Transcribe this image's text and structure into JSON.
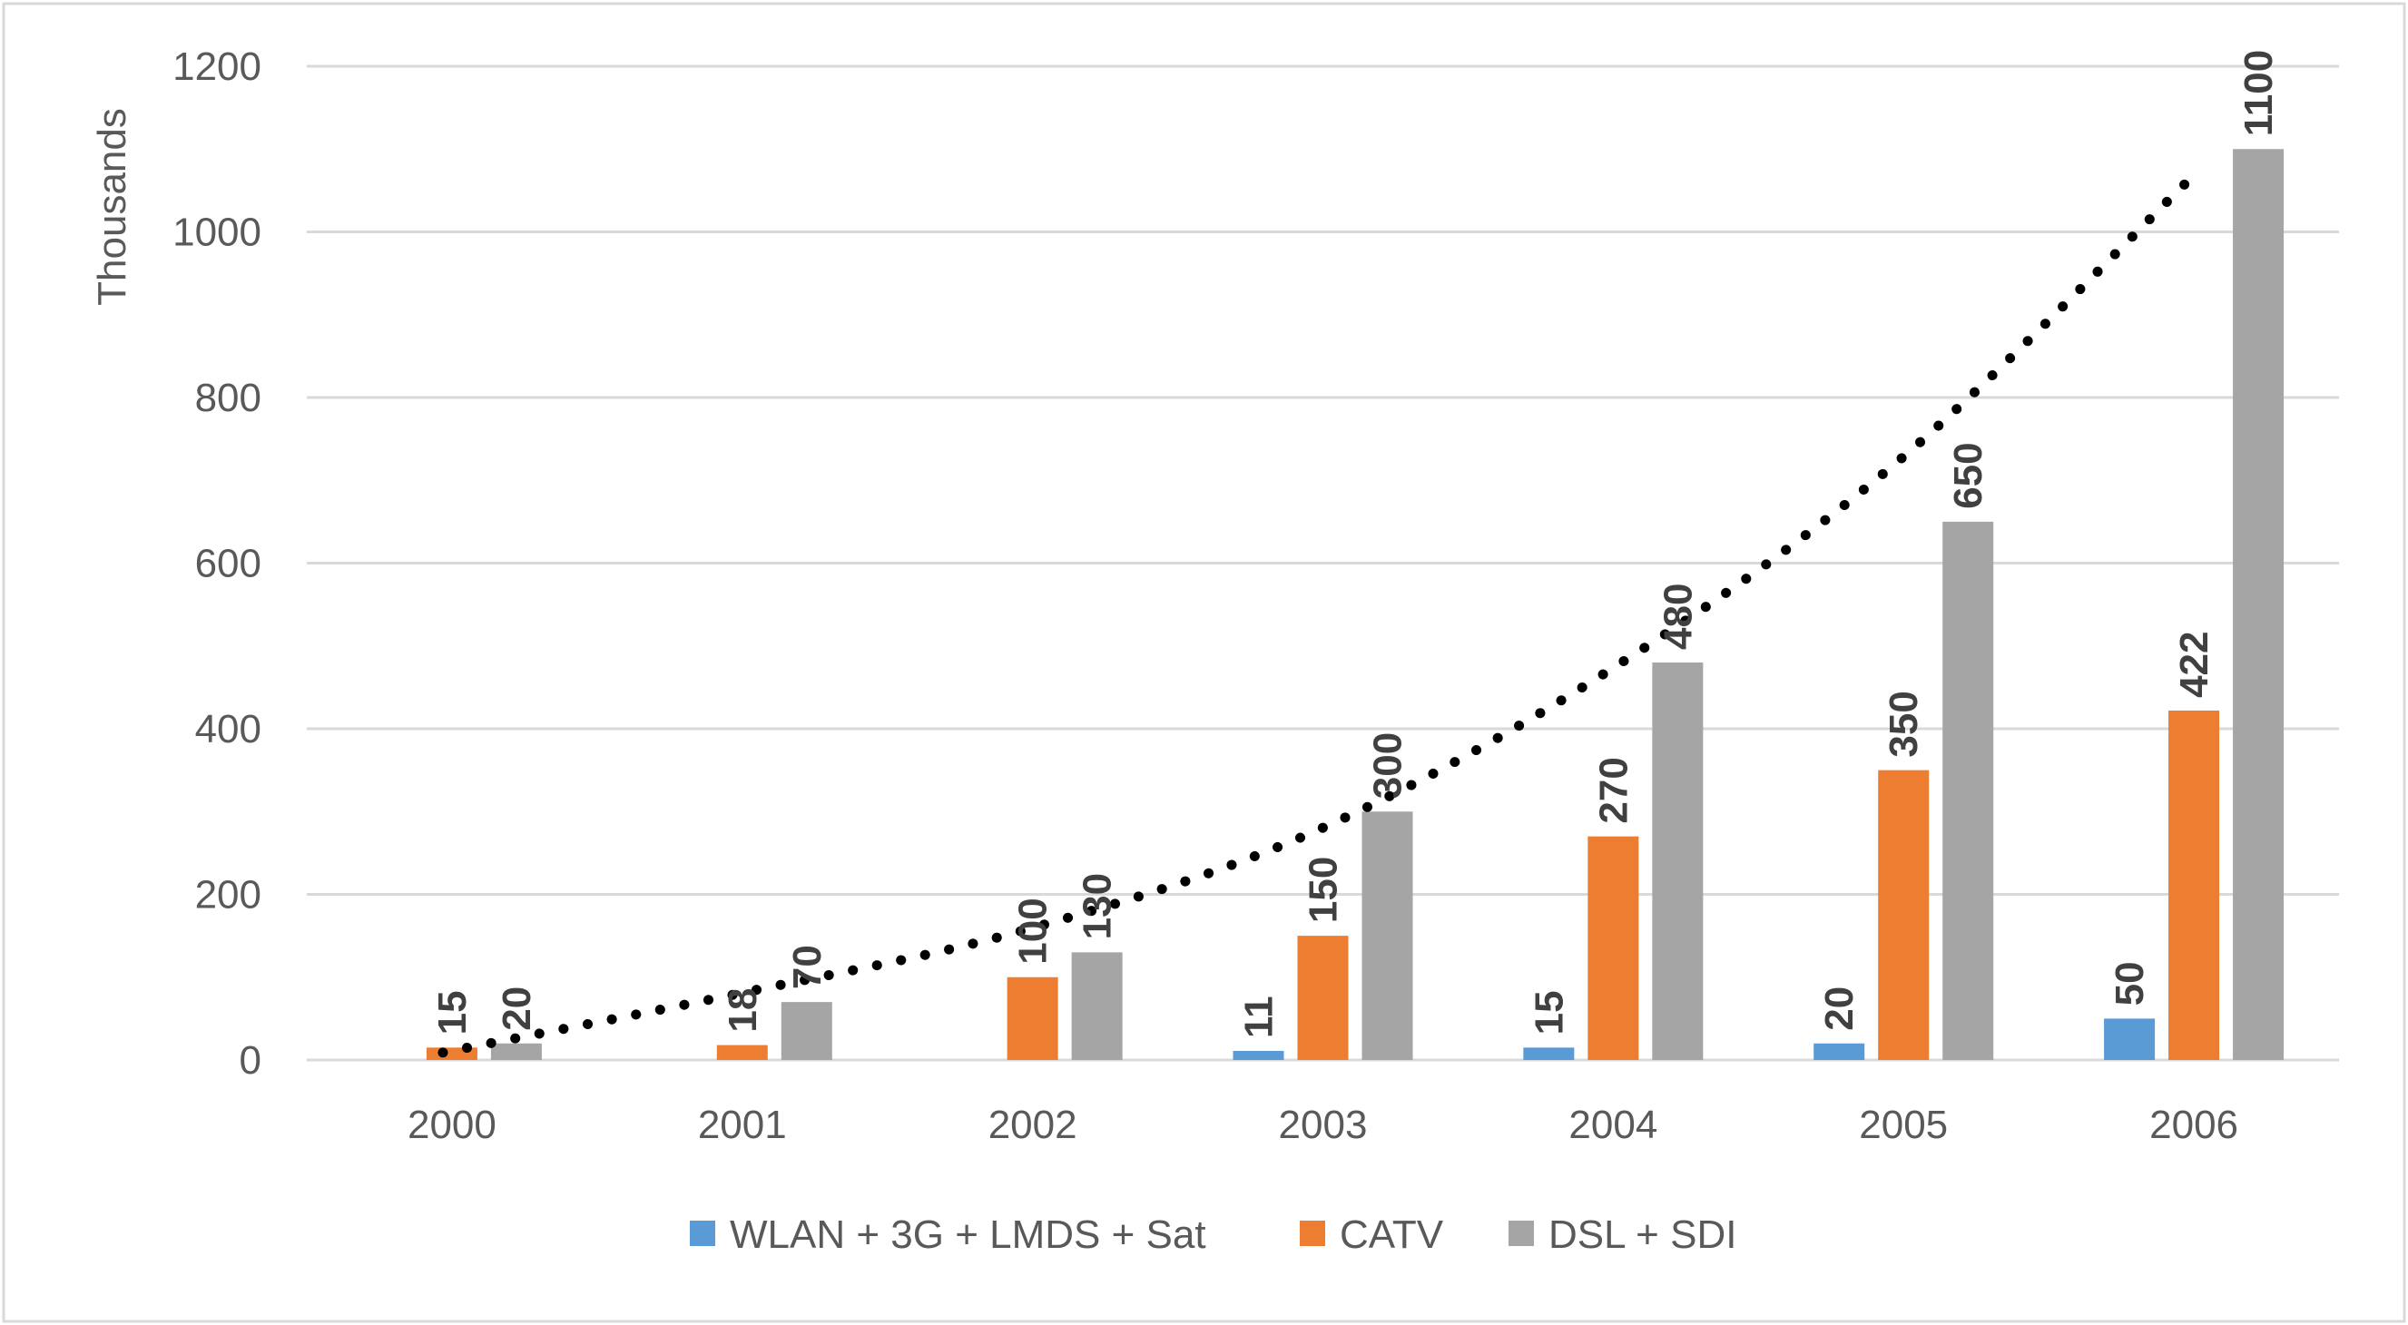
{
  "chart_data": {
    "type": "bar",
    "title": "",
    "xlabel": "",
    "ylabel": "Thousands",
    "ylim": [
      0,
      1200
    ],
    "yticks": [
      0,
      200,
      400,
      600,
      800,
      1000,
      1200
    ],
    "grid": true,
    "legend_position": "bottom",
    "categories": [
      "2000",
      "2001",
      "2002",
      "2003",
      "2004",
      "2005",
      "2006"
    ],
    "series": [
      {
        "name": "WLAN + 3G + LMDS + Sat",
        "color": "#5B9BD5",
        "values": [
          null,
          null,
          null,
          11,
          15,
          20,
          50
        ]
      },
      {
        "name": "CATV",
        "color": "#ED7D31",
        "values": [
          15,
          18,
          100,
          150,
          270,
          350,
          422
        ]
      },
      {
        "name": "DSL + SDI",
        "color": "#A5A5A5",
        "values": [
          20,
          70,
          130,
          300,
          480,
          650,
          1100
        ]
      }
    ],
    "trendline": {
      "style": "dotted",
      "color": "#000000",
      "values": [
        9,
        80,
        158,
        278,
        470,
        724,
        1063
      ]
    }
  }
}
